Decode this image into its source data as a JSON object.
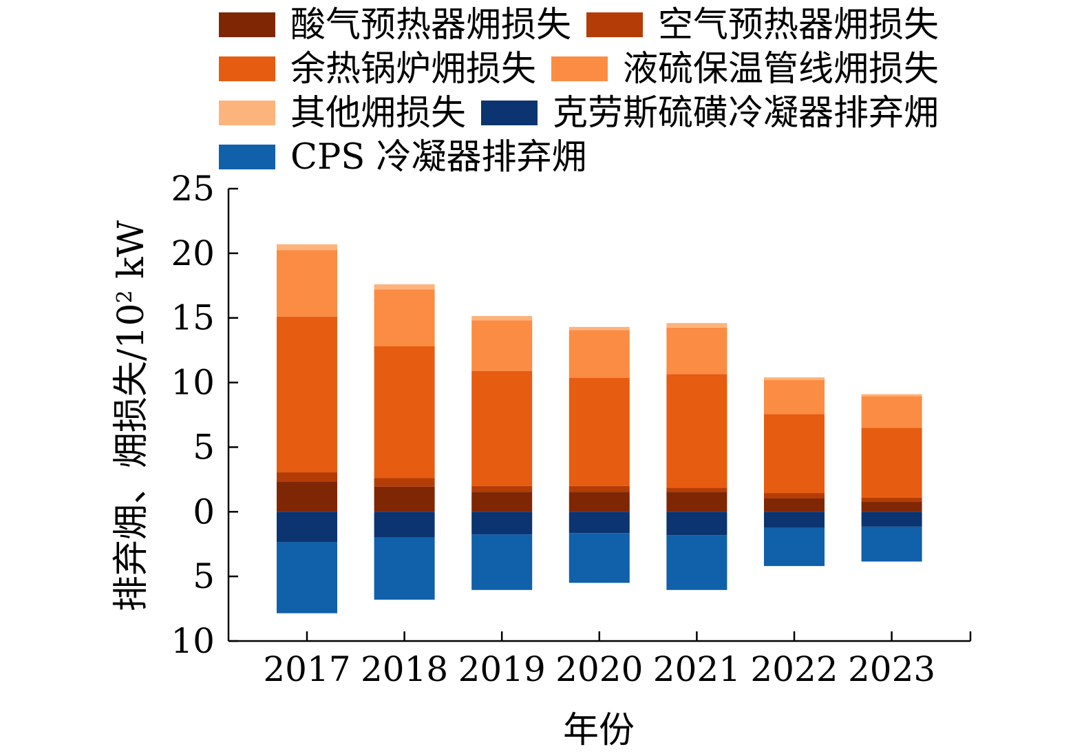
{
  "chart_data": {
    "type": "bar",
    "stacked": true,
    "title": "",
    "xlabel": "年份",
    "ylabel": "排弃㶲、㶲损失/10² kW",
    "ylabel_parts": [
      "排弃㶲、㶲损失/10",
      "2",
      " kW"
    ],
    "ylim": [
      -10,
      25
    ],
    "yticks": [
      {
        "value": 25,
        "label": "25"
      },
      {
        "value": 20,
        "label": "20"
      },
      {
        "value": 15,
        "label": "15"
      },
      {
        "value": 10,
        "label": "10"
      },
      {
        "value": 5,
        "label": "5"
      },
      {
        "value": 0,
        "label": "0"
      },
      {
        "value": -5,
        "label": "5"
      },
      {
        "value": -10,
        "label": "10"
      }
    ],
    "categories": [
      "2017",
      "2018",
      "2019",
      "2020",
      "2021",
      "2022",
      "2023"
    ],
    "legend_position": "top",
    "series": [
      {
        "name": "酸气预热器㶲损失",
        "color": "#7f2704",
        "values": [
          2.35,
          1.95,
          1.55,
          1.55,
          1.55,
          1.05,
          0.8
        ]
      },
      {
        "name": "空气预热器㶲损失",
        "color": "#b43c06",
        "values": [
          0.7,
          0.65,
          0.45,
          0.45,
          0.3,
          0.4,
          0.3
        ]
      },
      {
        "name": "余热锅炉㶲损失",
        "color": "#e65c10",
        "values": [
          12.05,
          10.2,
          8.9,
          8.35,
          8.8,
          6.1,
          5.4
        ]
      },
      {
        "name": "液硫保温管线㶲损失",
        "color": "#fa8c44",
        "values": [
          5.15,
          4.4,
          3.9,
          3.7,
          3.6,
          2.65,
          2.45
        ]
      },
      {
        "name": "其他㶲损失",
        "color": "#fdb37c",
        "values": [
          0.45,
          0.4,
          0.35,
          0.25,
          0.35,
          0.2,
          0.15
        ]
      },
      {
        "name": "克劳斯硫磺冷凝器排弃㶲",
        "color": "#0b3470",
        "values": [
          -2.35,
          -2.0,
          -1.75,
          -1.65,
          -1.8,
          -1.25,
          -1.15
        ]
      },
      {
        "name": "CPS 冷凝器排弃㶲",
        "color": "#1060aa",
        "values": [
          -5.5,
          -4.8,
          -4.3,
          -3.85,
          -4.25,
          -2.95,
          -2.7
        ]
      }
    ]
  }
}
